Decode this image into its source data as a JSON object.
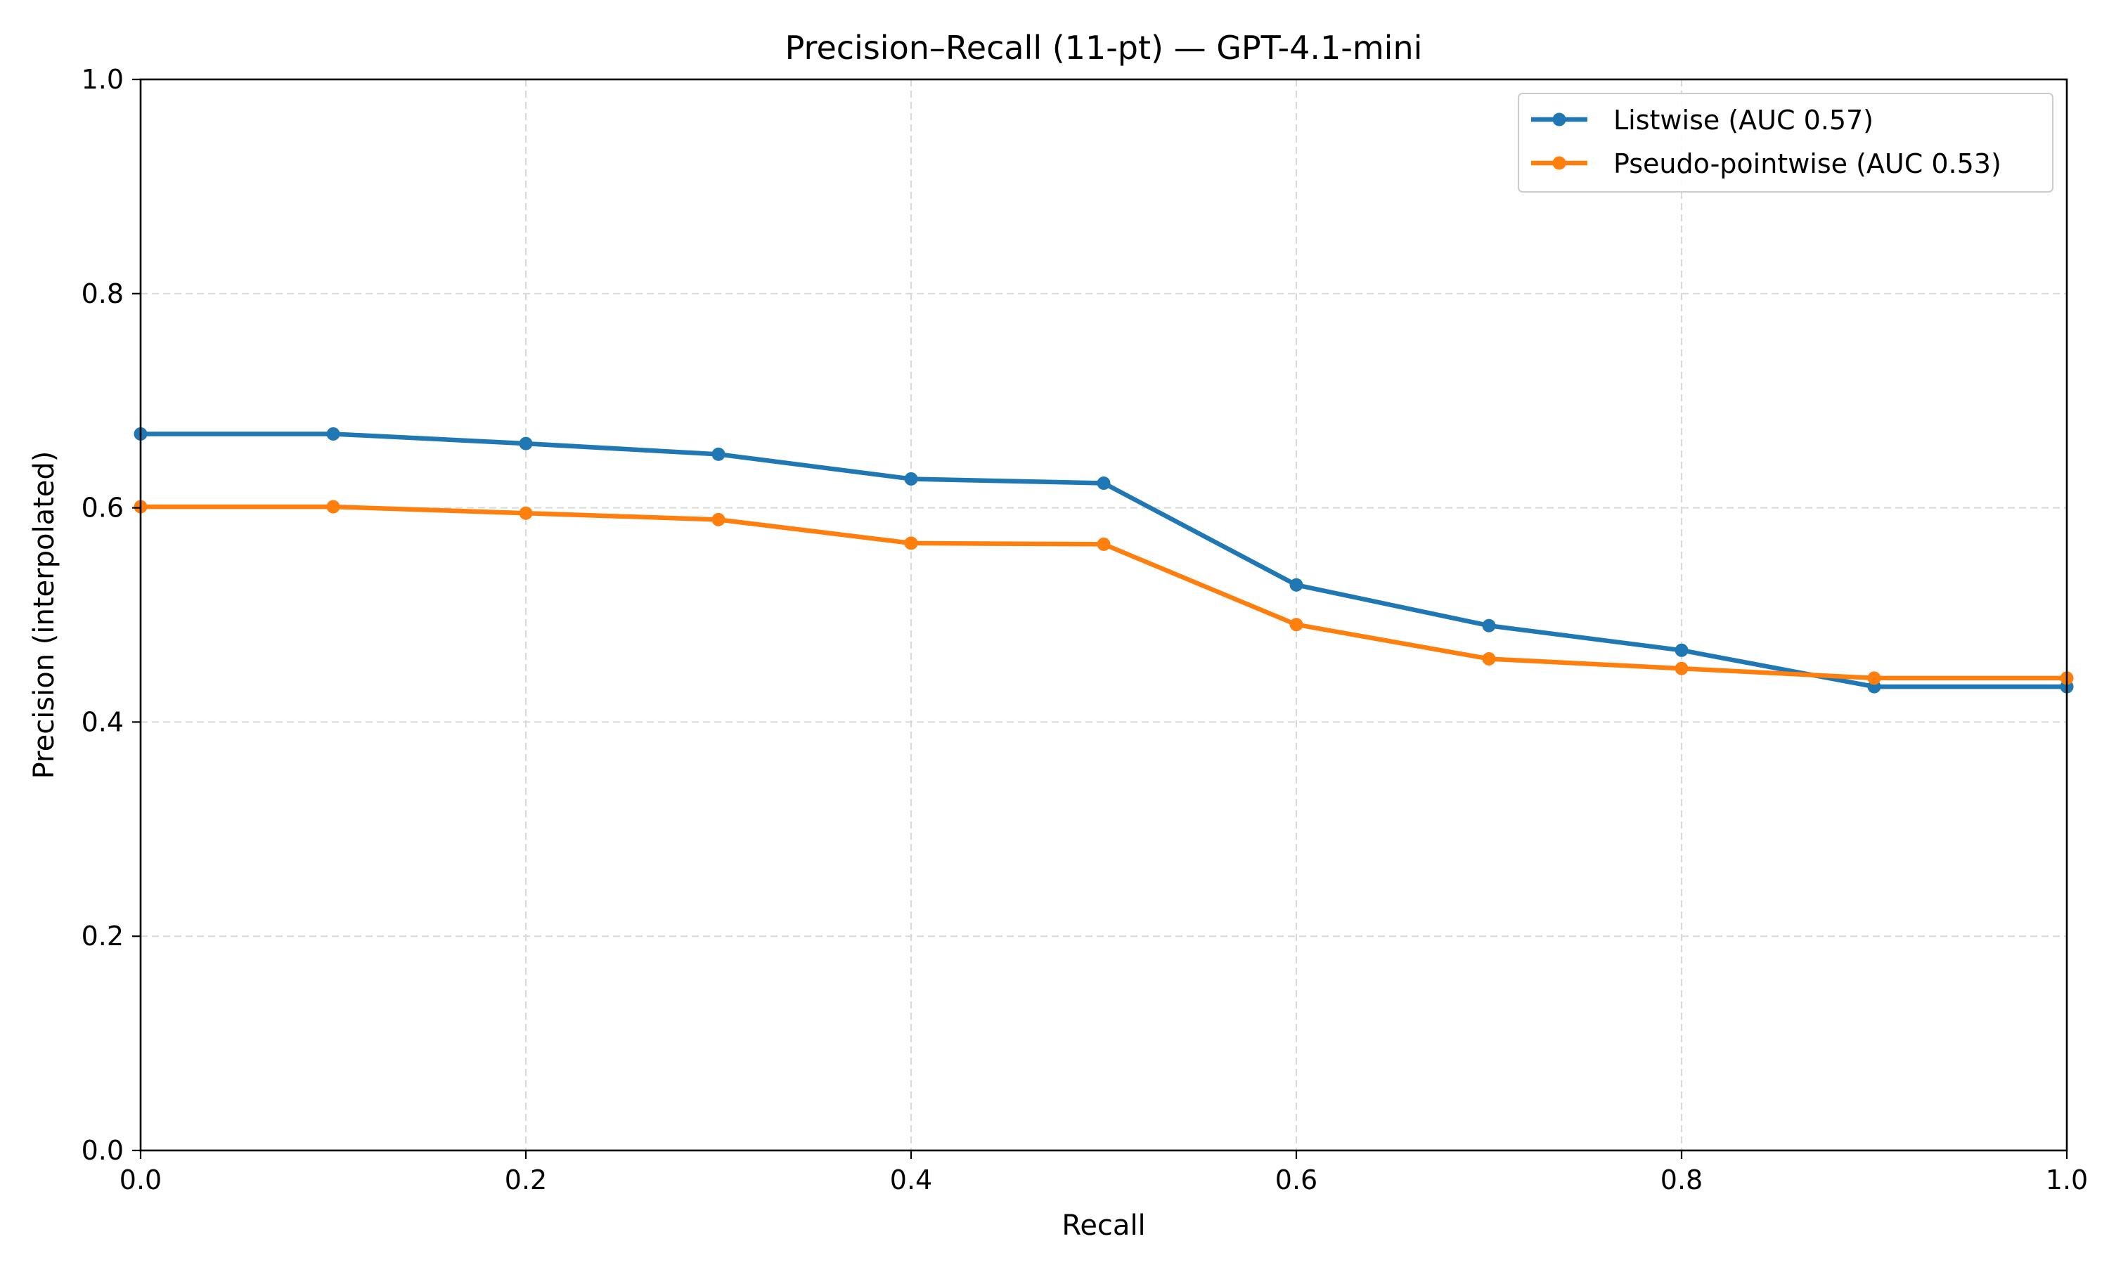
{
  "chart_data": {
    "type": "line",
    "title": "Precision–Recall (11-pt) — GPT-4.1-mini",
    "xlabel": "Recall",
    "ylabel": "Precision (interpolated)",
    "xlim": [
      0.0,
      1.0
    ],
    "ylim": [
      0.0,
      1.0
    ],
    "xticks": [
      0.0,
      0.2,
      0.4,
      0.6,
      0.8,
      1.0
    ],
    "xtick_labels": [
      "0.0",
      "0.2",
      "0.4",
      "0.6",
      "0.8",
      "1.0"
    ],
    "yticks": [
      0.0,
      0.2,
      0.4,
      0.6,
      0.8,
      1.0
    ],
    "ytick_labels": [
      "0.0",
      "0.2",
      "0.4",
      "0.6",
      "0.8",
      "1.0"
    ],
    "grid": true,
    "grid_style": "dashed",
    "legend_position": "top-right",
    "x": [
      0.0,
      0.1,
      0.2,
      0.3,
      0.4,
      0.5,
      0.6,
      0.7,
      0.8,
      0.9,
      1.0
    ],
    "series": [
      {
        "name": "Listwise (AUC 0.57)",
        "color": "#1f77b4",
        "values": [
          0.669,
          0.669,
          0.66,
          0.65,
          0.627,
          0.623,
          0.528,
          0.49,
          0.467,
          0.433,
          0.433
        ]
      },
      {
        "name": "Pseudo-pointwise (AUC 0.53)",
        "color": "#ff7f0e",
        "values": [
          0.601,
          0.601,
          0.595,
          0.589,
          0.567,
          0.566,
          0.491,
          0.459,
          0.45,
          0.441,
          0.441
        ]
      }
    ]
  }
}
